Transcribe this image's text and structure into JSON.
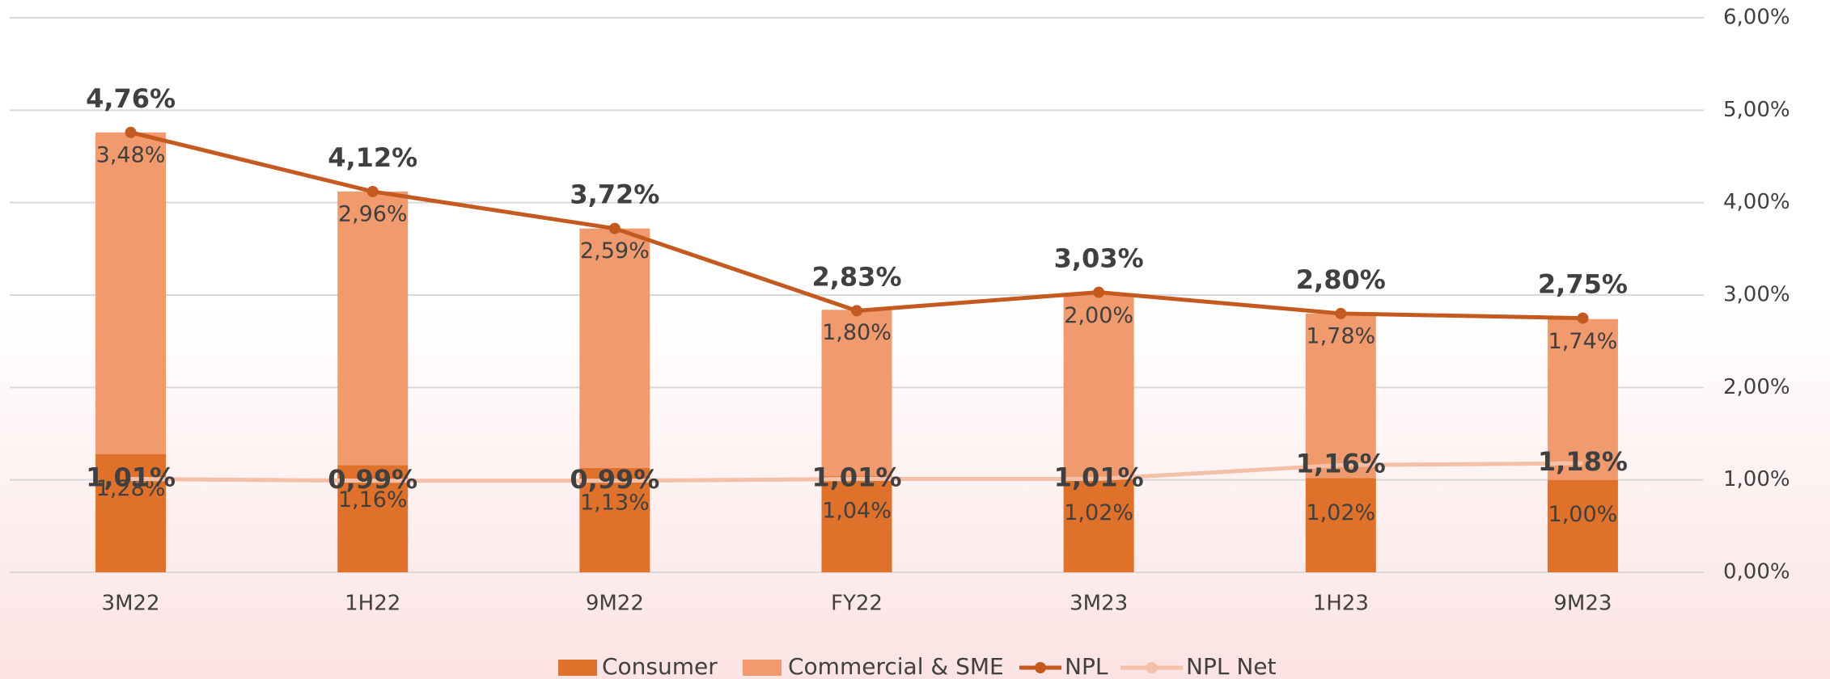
{
  "chart_data": {
    "type": "bar_line",
    "categories": [
      "3M22",
      "1H22",
      "9M22",
      "FY22",
      "3M23",
      "1H23",
      "9M23"
    ],
    "series": [
      {
        "name": "Consumer",
        "type": "bar",
        "color": "#e0712b",
        "values": [
          1.28,
          1.16,
          1.13,
          1.04,
          1.02,
          1.02,
          1.0
        ],
        "value_labels": [
          "1,28%",
          "1,16%",
          "1,13%",
          "1,04%",
          "1,02%",
          "1,02%",
          "1,00%"
        ]
      },
      {
        "name": "Commercial & SME",
        "type": "bar",
        "color": "#f09a6e",
        "values": [
          3.48,
          2.96,
          2.59,
          1.8,
          2.0,
          1.78,
          1.74
        ],
        "value_labels": [
          "3,48%",
          "2,96%",
          "2,59%",
          "1,80%",
          "2,00%",
          "1,78%",
          "1,74%"
        ]
      },
      {
        "name": "NPL",
        "type": "line",
        "color": "#c55a20",
        "values": [
          4.76,
          4.12,
          3.72,
          2.83,
          3.03,
          2.8,
          2.75
        ],
        "value_labels": [
          "4,76%",
          "4,12%",
          "3,72%",
          "2,83%",
          "3,03%",
          "2,80%",
          "2,75%"
        ]
      },
      {
        "name": "NPL Net",
        "type": "line",
        "color": "#f5c0a8",
        "values": [
          1.01,
          0.99,
          0.99,
          1.01,
          1.01,
          1.16,
          1.18
        ],
        "value_labels": [
          "1,01%",
          "0,99%",
          "0,99%",
          "1,01%",
          "1,01%",
          "1,16%",
          "1,18%"
        ]
      }
    ],
    "ylim": [
      0,
      6
    ],
    "yticks": [
      {
        "value": 0,
        "label": "0,00%"
      },
      {
        "value": 1,
        "label": "1,00%"
      },
      {
        "value": 2,
        "label": "2,00%"
      },
      {
        "value": 3,
        "label": "3,00%"
      },
      {
        "value": 4,
        "label": "4,00%"
      },
      {
        "value": 5,
        "label": "5,00%"
      },
      {
        "value": 6,
        "label": "6,00%"
      }
    ],
    "grid": true,
    "legend": "bottom"
  }
}
